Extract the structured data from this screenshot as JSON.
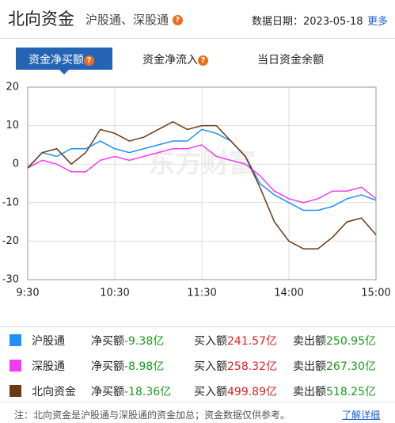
{
  "header": {
    "title": "北向资金",
    "subtitle": "沪股通、深股通",
    "date": "数据日期：2023-05-18",
    "more": "更多"
  },
  "tabs": [
    "资金净买额",
    "资金净流入",
    "当日资金余额"
  ],
  "watermark": "东方财富",
  "chart_data": {
    "type": "line",
    "categories": [
      "9:30",
      null,
      null,
      null,
      null,
      null,
      "10:30",
      null,
      null,
      null,
      null,
      null,
      "11:30",
      null,
      null,
      null,
      null,
      null,
      "14:00",
      null,
      null,
      null,
      null,
      null,
      "15:00"
    ],
    "ylim": [
      -30,
      20
    ],
    "yticks": [
      20,
      10,
      0,
      -10,
      -20,
      -30
    ],
    "grid": true,
    "series": [
      {
        "name": "沪股通",
        "color": "#1e90ff",
        "values": [
          -1,
          3,
          2,
          4,
          4,
          6,
          4,
          3,
          4,
          5,
          6,
          6,
          9,
          8,
          6,
          2,
          -5,
          -8,
          -10,
          -12,
          -12,
          -11,
          -9,
          -8,
          -9.38
        ]
      },
      {
        "name": "深股通",
        "color": "#f23cf2",
        "values": [
          -1,
          1,
          0,
          -2,
          -2,
          1,
          2,
          1,
          2,
          3,
          4,
          4,
          5,
          2,
          1,
          0,
          -3,
          -7,
          -9,
          -10,
          -9,
          -7,
          -7,
          -6,
          -8.98
        ]
      },
      {
        "name": "北向资金",
        "color": "#6b3a10",
        "values": [
          -1,
          3,
          4,
          0,
          3,
          9,
          8,
          6,
          7,
          9,
          11,
          9,
          10,
          10,
          6,
          2,
          -6,
          -15,
          -20,
          -22,
          -22,
          -19,
          -15,
          -14,
          -18.36
        ]
      }
    ]
  },
  "table": {
    "labels": [
      "净买额",
      "买入额",
      "卖出额"
    ],
    "rows": [
      [
        "-9.38亿",
        "241.57亿",
        "250.95亿"
      ],
      [
        "-8.98亿",
        "258.32亿",
        "267.30亿"
      ],
      [
        "-18.36亿",
        "499.89亿",
        "518.25亿"
      ]
    ]
  },
  "footnote": {
    "text": "注：北向资金是沪股通与深股通的资金加总；资金数据仅供参考。",
    "link": "了解详细"
  }
}
